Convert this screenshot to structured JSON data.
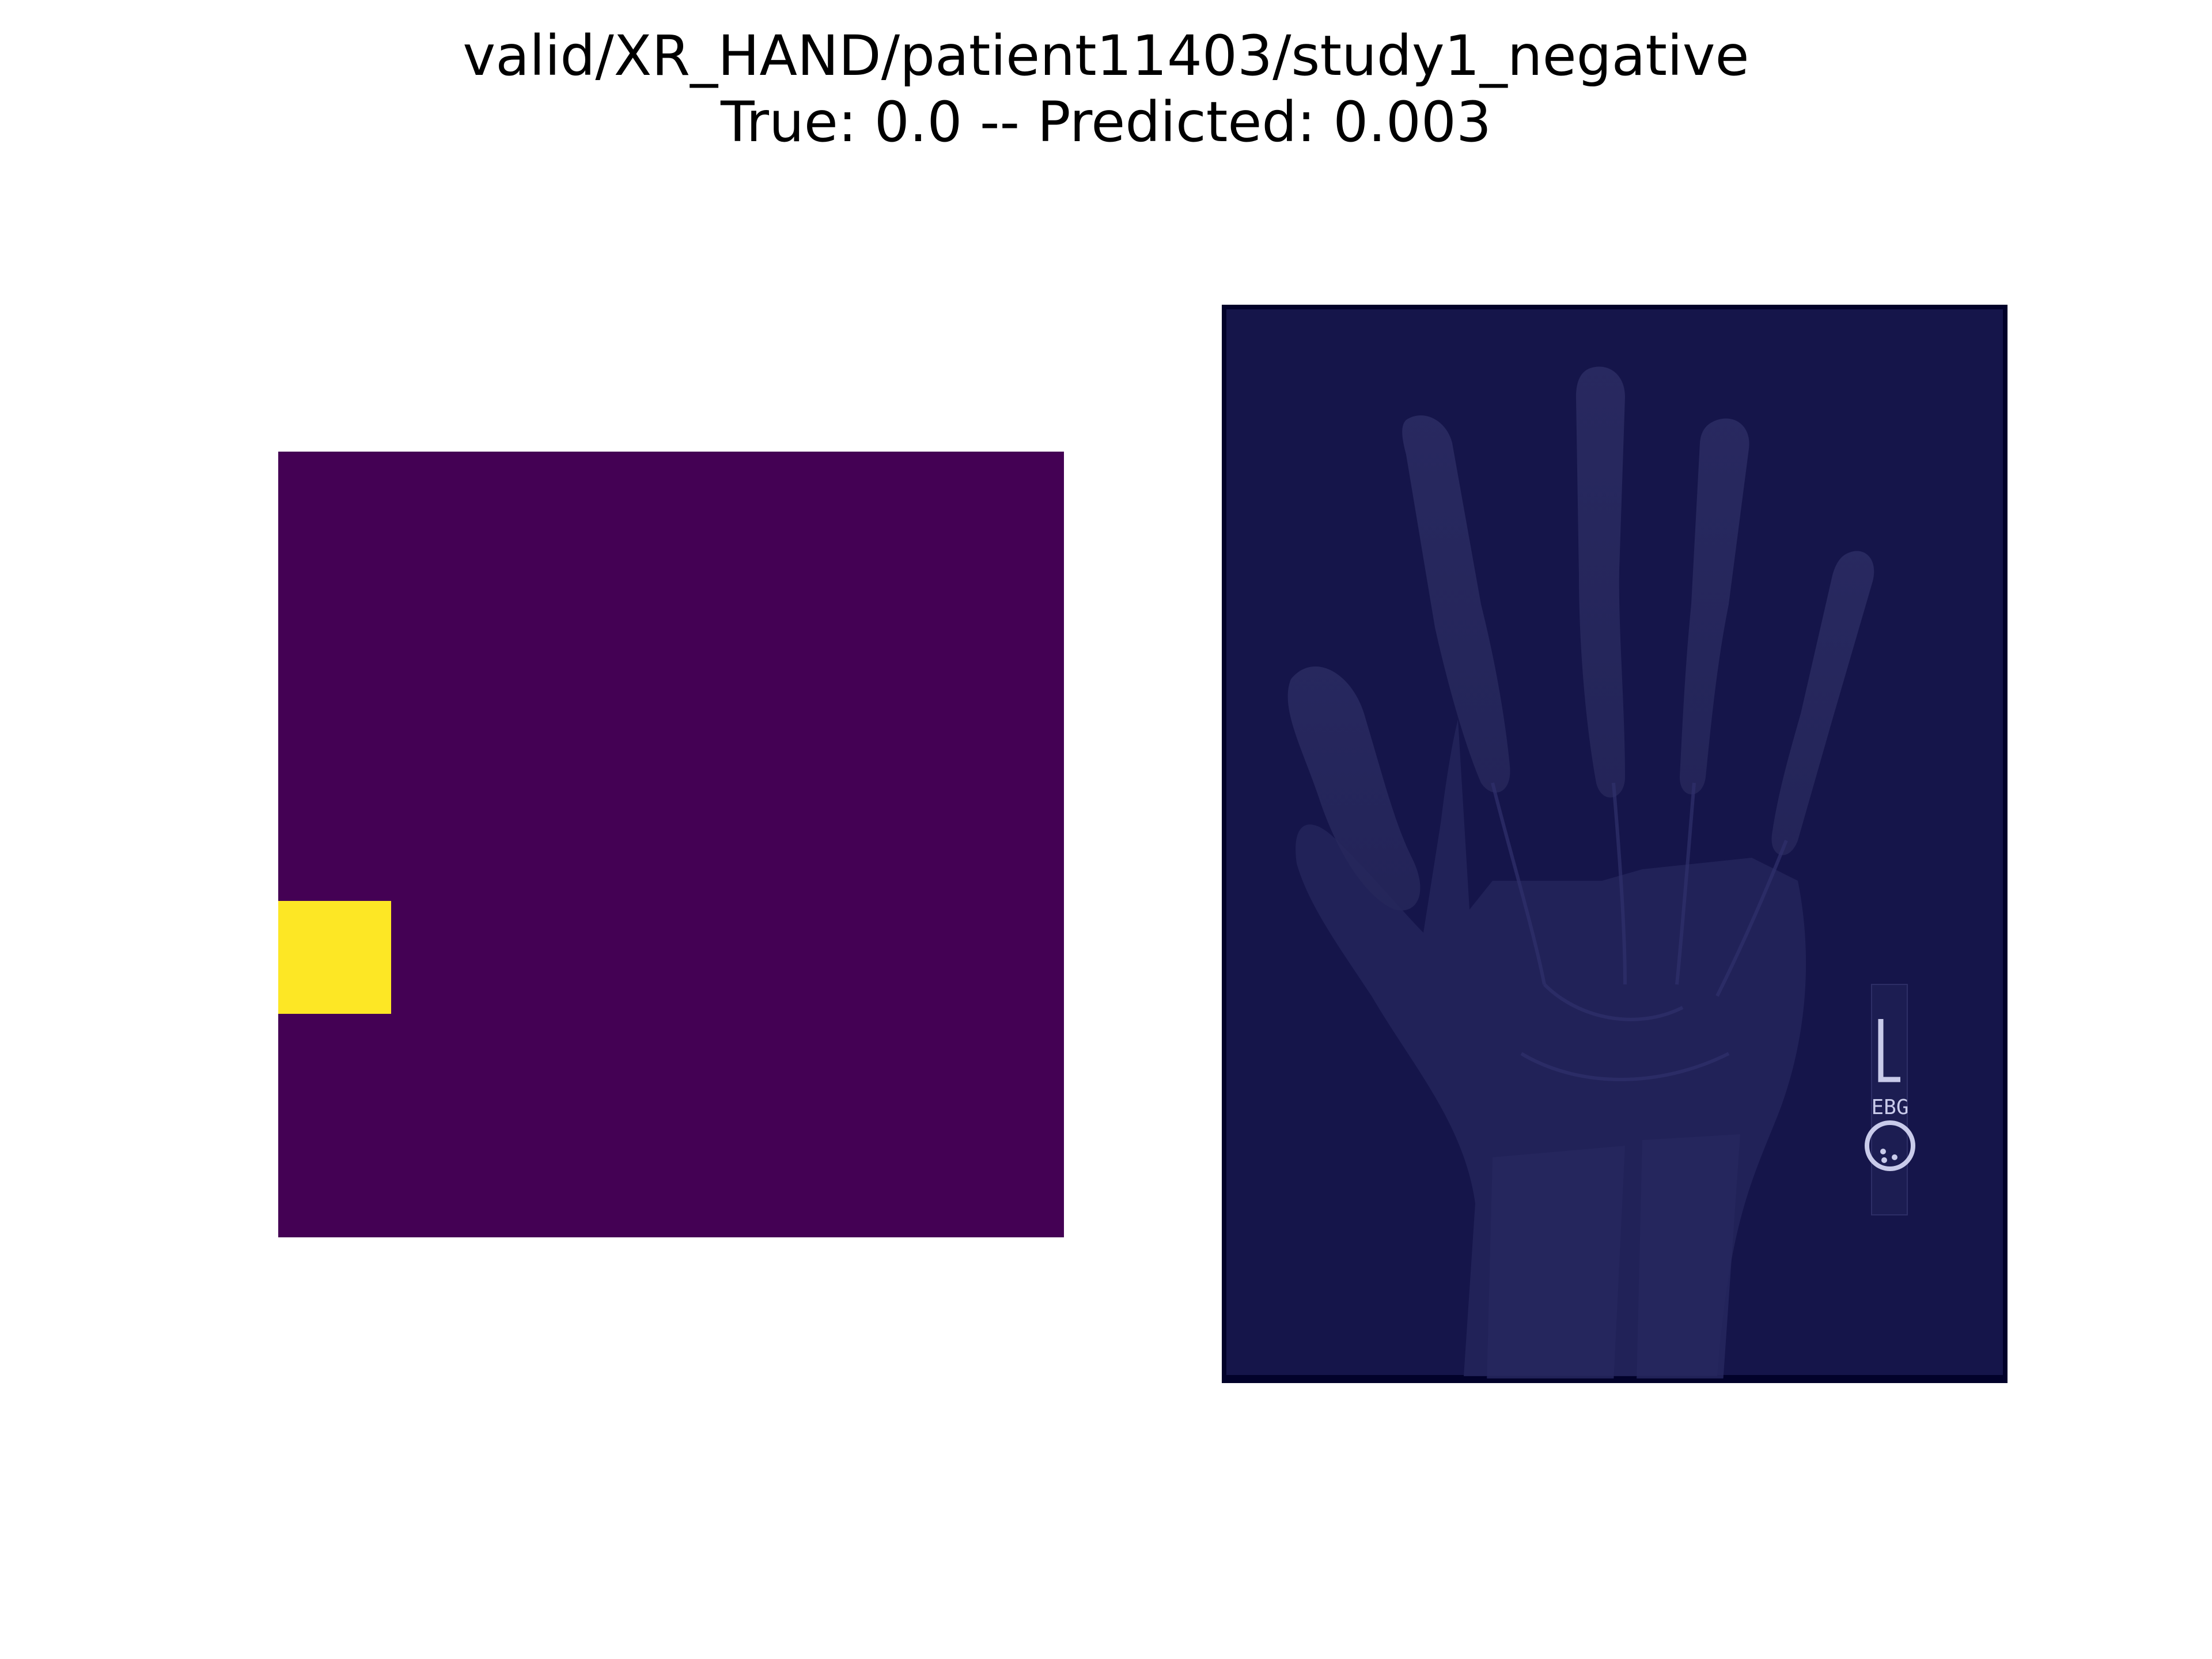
{
  "title": {
    "line1": "valid/XR_HAND/patient11403/study1_negative",
    "line2": "True: 0.0 -- Predicted: 0.003"
  },
  "mask": {
    "background_color": "#440154",
    "hot_color": "#fde725"
  },
  "overlay": {
    "image_type": "hand x-ray with Grad-CAM heatmap overlay",
    "marker_letter": "L",
    "marker_initials": "EBG"
  }
}
